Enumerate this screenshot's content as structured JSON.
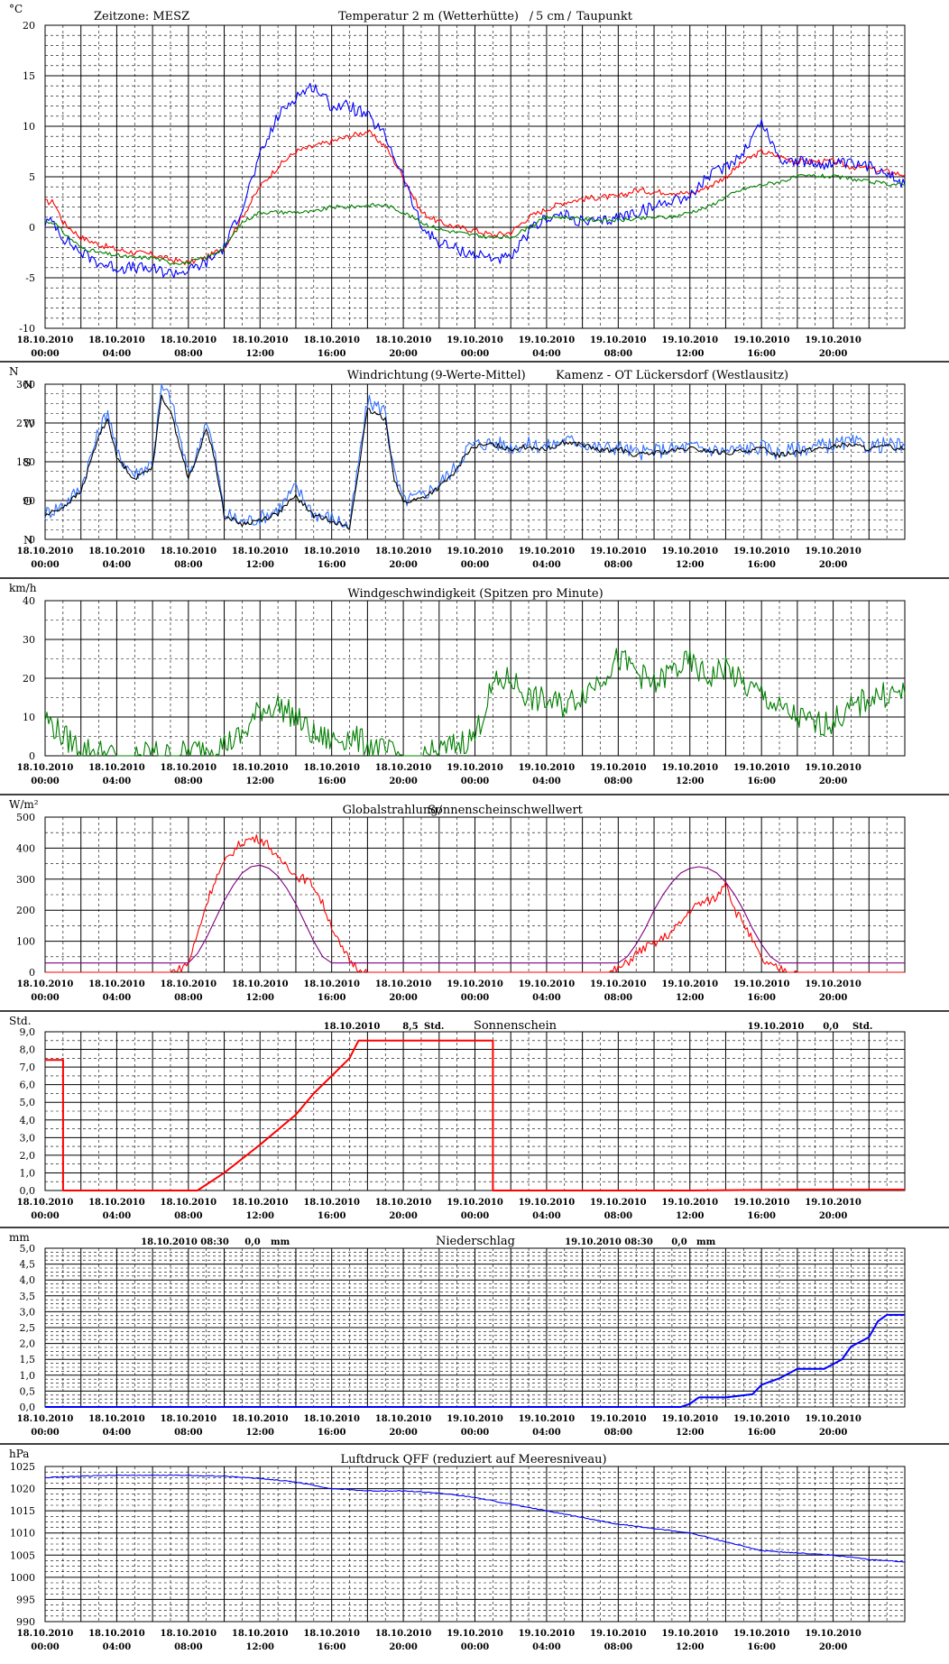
{
  "x_labels": [
    [
      "18.10.2010",
      "00:00"
    ],
    [
      "18.10.2010",
      "04:00"
    ],
    [
      "18.10.2010",
      "08:00"
    ],
    [
      "18.10.2010",
      "12:00"
    ],
    [
      "18.10.2010",
      "16:00"
    ],
    [
      "18.10.2010",
      "20:00"
    ],
    [
      "19.10.2010",
      "00:00"
    ],
    [
      "19.10.2010",
      "04:00"
    ],
    [
      "19.10.2010",
      "08:00"
    ],
    [
      "19.10.2010",
      "12:00"
    ],
    [
      "19.10.2010",
      "16:00"
    ],
    [
      "19.10.2010",
      "20:00"
    ]
  ],
  "colors": {
    "red": "#ff0000",
    "blue": "#0000ff",
    "green": "#008000",
    "windblue": "#3070ff",
    "black": "#000000",
    "purple": "#800080"
  },
  "chart_data": [
    {
      "type": "line",
      "unit": "°C",
      "ylim": [
        -10,
        20
      ],
      "yticks": [
        -10,
        -5,
        0,
        5,
        10,
        15,
        20
      ],
      "title_parts": [
        {
          "text": "Zeitzone: MESZ",
          "color": "#000000"
        },
        {
          "text": "Temperatur 2 m (Wetterhütte)",
          "color": "#ff0000"
        },
        {
          "text": "/",
          "color": "#000000"
        },
        {
          "text": "5 cm",
          "color": "#0000ff"
        },
        {
          "text": "/",
          "color": "#000000"
        },
        {
          "text": "Taupunkt",
          "color": "#008000"
        }
      ],
      "x_hours": [
        0,
        0.5,
        1,
        2,
        3,
        4,
        5,
        6,
        7,
        8,
        9,
        10,
        11,
        12,
        13,
        14,
        15,
        16,
        17,
        18,
        19,
        20,
        21,
        22,
        23,
        24,
        25,
        26,
        27,
        28,
        29,
        30,
        31,
        32,
        33,
        34,
        35,
        36,
        37,
        38,
        39,
        40,
        41,
        42,
        43,
        44,
        45,
        46,
        47,
        48
      ],
      "series": [
        {
          "name": "Temperatur 2 m",
          "color": "#ff0000",
          "values": [
            2.5,
            2.5,
            0.5,
            -1,
            -1.7,
            -2.2,
            -2.5,
            -2.7,
            -3.2,
            -3.5,
            -3,
            -2,
            1,
            4,
            6,
            7.5,
            8,
            8.5,
            9,
            9.5,
            8,
            5,
            1.5,
            0.5,
            0,
            -0.3,
            -0.8,
            -0.5,
            1,
            1.8,
            2.5,
            2.8,
            3,
            3,
            3.7,
            3.5,
            3.5,
            3.3,
            4,
            5,
            6.5,
            7.5,
            7,
            6.5,
            6.5,
            6.5,
            6,
            5.8,
            5.5,
            5.2
          ]
        },
        {
          "name": "5 cm",
          "color": "#0000ff",
          "values": [
            0.5,
            0.5,
            -1,
            -2.5,
            -3.5,
            -4,
            -4,
            -4.2,
            -4.5,
            -4.3,
            -3.5,
            -2,
            2,
            7,
            11,
            13,
            14,
            12,
            12,
            11,
            9,
            5,
            0,
            -1.5,
            -2.2,
            -2.7,
            -3,
            -3.2,
            -0.5,
            1,
            1.2,
            0.5,
            0.5,
            1,
            1.5,
            2,
            2.8,
            3,
            5,
            6,
            7.5,
            10.5,
            6.8,
            6.5,
            6.3,
            6.3,
            6.2,
            6,
            5.6,
            4.2
          ]
        },
        {
          "name": "Taupunkt",
          "color": "#008000",
          "values": [
            0.5,
            0.5,
            -0.5,
            -2,
            -2.5,
            -2.8,
            -3,
            -3,
            -3.5,
            -3.5,
            -3,
            -2,
            0.5,
            1.5,
            1.5,
            1.5,
            1.5,
            2,
            2,
            2.2,
            2.2,
            1.5,
            0.5,
            -0.2,
            -0.5,
            -0.8,
            -1,
            -1,
            0,
            1,
            1,
            0.8,
            0.7,
            0.7,
            0.8,
            1,
            1,
            1.5,
            2,
            3,
            3.8,
            4.2,
            4.5,
            5,
            5.1,
            5,
            4.8,
            4.5,
            4.3,
            4.2
          ]
        }
      ]
    },
    {
      "type": "line",
      "unit": "N",
      "ylim": [
        0,
        360
      ],
      "yticks": [
        0,
        90,
        180,
        270,
        360
      ],
      "compass": [
        {
          "label": "N",
          "value": 360
        },
        {
          "label": "W",
          "value": 270
        },
        {
          "label": "S",
          "value": 180
        },
        {
          "label": "O",
          "value": 90
        },
        {
          "label": "N",
          "value": 0
        }
      ],
      "title_parts": [
        {
          "text": "Windrichtung",
          "color": "#3070ff"
        },
        {
          "text": "(9-Werte-Mittel)",
          "color": "#000000"
        },
        {
          "text": "Kamenz - OT Lückersdorf (Westlausitz)",
          "color": "#000000"
        }
      ],
      "x_hours": [
        0,
        1,
        2,
        3,
        3.5,
        4,
        5,
        6,
        6.5,
        7,
        8,
        8.5,
        9,
        9.5,
        10,
        11,
        12,
        13,
        14,
        15,
        16,
        16.5,
        17,
        18,
        19,
        19.5,
        20,
        21,
        22,
        23,
        23.5,
        24,
        25,
        26,
        27,
        28,
        29,
        30,
        31,
        32,
        33,
        34,
        35,
        36,
        37,
        38,
        39,
        40,
        41,
        42,
        43,
        44,
        45,
        46,
        47,
        48
      ],
      "series": [
        {
          "name": "Windrichtung",
          "color": "#3070ff",
          "values": [
            60,
            80,
            120,
            250,
            300,
            200,
            150,
            180,
            350,
            330,
            150,
            200,
            280,
            190,
            60,
            40,
            50,
            70,
            120,
            60,
            50,
            40,
            30,
            320,
            300,
            150,
            90,
            100,
            130,
            170,
            210,
            220,
            225,
            215,
            220,
            215,
            230,
            225,
            210,
            215,
            200,
            205,
            210,
            215,
            210,
            205,
            210,
            215,
            200,
            210,
            215,
            220,
            225,
            215,
            220,
            215
          ]
        },
        {
          "name": "9-Werte-Mittel",
          "color": "#000000",
          "values": [
            55,
            75,
            110,
            240,
            280,
            190,
            140,
            170,
            330,
            300,
            140,
            190,
            260,
            180,
            55,
            35,
            45,
            60,
            100,
            55,
            45,
            35,
            25,
            300,
            280,
            140,
            85,
            95,
            120,
            160,
            200,
            215,
            220,
            210,
            215,
            210,
            225,
            220,
            205,
            210,
            195,
            200,
            205,
            210,
            205,
            200,
            205,
            210,
            195,
            205,
            210,
            215,
            220,
            210,
            215,
            210
          ]
        }
      ]
    },
    {
      "type": "line",
      "unit": "km/h",
      "ylim": [
        0,
        40
      ],
      "yticks": [
        0,
        10,
        20,
        30,
        40
      ],
      "title_parts": [
        {
          "text": "Windgeschwindigkeit (Spitzen pro Minute)",
          "color": "#000000"
        }
      ],
      "x_hours": [
        0,
        1,
        2,
        3,
        4,
        5,
        6,
        7,
        8,
        9,
        10,
        11,
        12,
        13,
        14,
        15,
        16,
        17,
        18,
        19,
        20,
        21,
        22,
        23,
        24,
        25,
        26,
        27,
        28,
        29,
        30,
        31,
        32,
        33,
        34,
        35,
        36,
        37,
        38,
        39,
        40,
        41,
        42,
        43,
        44,
        45,
        46,
        47,
        48
      ],
      "series": [
        {
          "name": "Windgeschwindigkeit",
          "color": "#008000",
          "values": [
            10,
            5,
            2,
            1,
            0,
            0,
            1,
            0,
            1,
            2,
            3,
            5,
            12,
            13,
            10,
            5,
            4,
            5,
            3,
            1,
            0,
            0,
            1,
            3,
            5,
            18,
            20,
            15,
            14,
            13,
            16,
            20,
            25,
            22,
            18,
            22,
            24,
            20,
            23,
            18,
            16,
            12,
            10,
            8,
            9,
            12,
            15,
            16,
            16
          ]
        }
      ]
    },
    {
      "type": "line",
      "unit": "W/m²",
      "ylim": [
        0,
        500
      ],
      "yticks": [
        0,
        100,
        200,
        300,
        400,
        500
      ],
      "title_parts": [
        {
          "text": "Globalstrahlung/",
          "color": "#000000"
        },
        {
          "text": "Sonnenscheinschwellwert",
          "color": "#800080"
        }
      ],
      "x_hours": [
        0,
        1,
        2,
        3,
        4,
        5,
        6,
        7,
        7.5,
        8,
        8.5,
        9,
        9.5,
        10,
        10.5,
        11,
        11.5,
        12,
        12.5,
        13,
        13.5,
        14,
        14.5,
        15,
        15.5,
        16,
        16.5,
        17,
        17.5,
        18,
        18.5,
        19,
        20,
        21,
        22,
        23,
        24,
        25,
        26,
        27,
        28,
        29,
        30,
        31,
        31.5,
        32,
        32.5,
        33,
        33.5,
        34,
        34.5,
        35,
        35.5,
        36,
        36.5,
        37,
        37.5,
        38,
        38.5,
        39,
        39.5,
        40,
        40.5,
        41,
        41.5,
        42,
        42.5,
        43,
        44,
        45,
        46,
        47,
        48
      ],
      "series": [
        {
          "name": "Globalstrahlung",
          "color": "#ff0000",
          "values": [
            0,
            0,
            0,
            0,
            0,
            0,
            0,
            0,
            10,
            30,
            120,
            220,
            300,
            350,
            390,
            420,
            430,
            430,
            410,
            360,
            350,
            310,
            300,
            280,
            220,
            150,
            80,
            40,
            10,
            0,
            0,
            0,
            0,
            0,
            0,
            0,
            0,
            0,
            0,
            0,
            0,
            0,
            0,
            0,
            0,
            10,
            30,
            60,
            80,
            90,
            110,
            130,
            160,
            200,
            220,
            230,
            240,
            300,
            200,
            160,
            100,
            40,
            20,
            10,
            5,
            0,
            0,
            0,
            0,
            0,
            0,
            0,
            0
          ]
        },
        {
          "name": "Sonnenscheinschwellwert",
          "color": "#800080",
          "values": [
            30,
            30,
            30,
            30,
            30,
            30,
            30,
            30,
            30,
            30,
            60,
            110,
            170,
            230,
            280,
            320,
            340,
            345,
            335,
            310,
            270,
            220,
            160,
            100,
            50,
            30,
            30,
            30,
            30,
            30,
            30,
            30,
            30,
            30,
            30,
            30,
            30,
            30,
            30,
            30,
            30,
            30,
            30,
            30,
            30,
            30,
            50,
            90,
            140,
            200,
            250,
            290,
            320,
            335,
            340,
            335,
            320,
            290,
            250,
            200,
            140,
            90,
            50,
            30,
            30,
            30,
            30,
            30,
            30,
            30,
            30,
            30,
            30
          ]
        }
      ]
    },
    {
      "type": "line",
      "unit": "Std.",
      "ylim": [
        0,
        9
      ],
      "yticks": [
        "0,0",
        "1,0",
        "2,0",
        "3,0",
        "4,0",
        "5,0",
        "6,0",
        "7,0",
        "8,0",
        "9,0"
      ],
      "title_parts": [
        {
          "text": "Sonnenschein",
          "color": "#000000"
        }
      ],
      "annotations": [
        {
          "date": "18.10.2010",
          "value": "8,5",
          "unit": "Std."
        },
        {
          "date": "19.10.2010",
          "value": "0,0",
          "unit": "Std."
        }
      ],
      "x_hours": [
        0,
        1,
        1,
        8.5,
        10,
        12,
        14,
        15,
        16,
        17,
        17.5,
        18,
        20,
        24,
        25,
        25,
        30,
        36,
        42,
        48
      ],
      "series": [
        {
          "name": "Sonnenschein",
          "color": "#ff0000",
          "values": [
            7.4,
            7.4,
            0,
            0,
            1,
            2.6,
            4.3,
            5.5,
            6.5,
            7.5,
            8.5,
            8.5,
            8.5,
            8.5,
            8.5,
            0,
            0,
            0,
            0.05,
            0.05
          ]
        }
      ]
    },
    {
      "type": "line",
      "unit": "mm",
      "ylim": [
        0,
        5
      ],
      "yticks": [
        "0,0",
        "0,5",
        "1,0",
        "1,5",
        "2,0",
        "2,5",
        "3,0",
        "3,5",
        "4,0",
        "4,5",
        "5,0"
      ],
      "title_parts": [
        {
          "text": "Niederschlag",
          "color": "#000000"
        }
      ],
      "annotations": [
        {
          "date": "18.10.2010 08:30",
          "value": "0,0",
          "unit": "mm"
        },
        {
          "date": "19.10.2010 08:30",
          "value": "0,0",
          "unit": "mm"
        }
      ],
      "x_hours": [
        0,
        6,
        12,
        18,
        24,
        30,
        35.5,
        36,
        36.5,
        38,
        39.5,
        40,
        40.5,
        41,
        42,
        43,
        43.5,
        44.5,
        45,
        46,
        46.5,
        47,
        48
      ],
      "series": [
        {
          "name": "Niederschlag",
          "color": "#0000ff",
          "values": [
            0,
            0,
            0,
            0,
            0,
            0,
            0,
            0.1,
            0.3,
            0.3,
            0.4,
            0.7,
            0.8,
            0.9,
            1.2,
            1.2,
            1.2,
            1.5,
            1.9,
            2.2,
            2.7,
            2.9,
            2.9
          ]
        }
      ]
    },
    {
      "type": "line",
      "unit": "hPa",
      "ylim": [
        990,
        1025
      ],
      "yticks": [
        990,
        995,
        1000,
        1005,
        1010,
        1015,
        1020,
        1025
      ],
      "title_parts": [
        {
          "text": "Luftdruck QFF (reduziert auf Meeresniveau)",
          "color": "#000000"
        }
      ],
      "x_hours": [
        0,
        2,
        4,
        6,
        8,
        10,
        12,
        14,
        16,
        18,
        20,
        22,
        24,
        26,
        28,
        30,
        32,
        34,
        36,
        38,
        40,
        42,
        44,
        46,
        48
      ],
      "series": [
        {
          "name": "Luftdruck",
          "color": "#0000ff",
          "values": [
            1022.5,
            1022.8,
            1023,
            1023,
            1023,
            1022.8,
            1022.3,
            1021.5,
            1020,
            1019.5,
            1019.5,
            1019,
            1018,
            1016.5,
            1015,
            1013.5,
            1012,
            1011,
            1010,
            1008,
            1006,
            1005.5,
            1005,
            1004,
            1003.5
          ]
        }
      ]
    }
  ]
}
